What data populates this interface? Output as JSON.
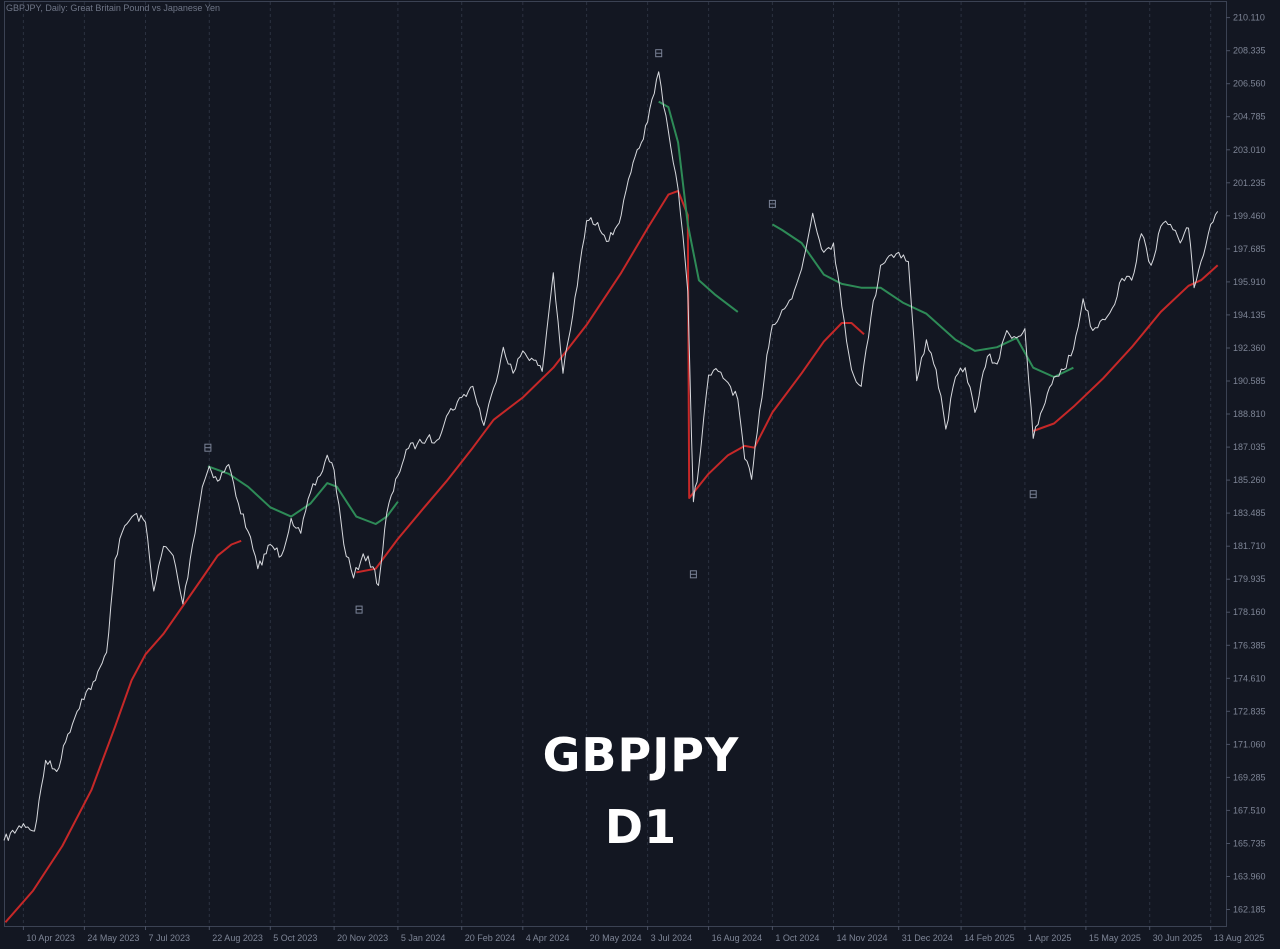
{
  "header": {
    "symbol_line": "GBPJPY, Daily:  Great Britain Pound vs Japanese Yen"
  },
  "overlay": {
    "line1": "GBPJPY",
    "line2": "D1"
  },
  "colors": {
    "background": "#131722",
    "price": "#d7d9de",
    "ma_down": "#c62828",
    "ma_up": "#2e8b57",
    "grid": "#2b3140",
    "axis_text": "#7e8596",
    "marker": "#7a8296"
  },
  "chart_data": {
    "type": "line",
    "title": "GBPJPY, Daily:  Great Britain Pound vs Japanese Yen",
    "xlabel": "",
    "ylabel": "",
    "ylim": [
      161.3,
      210.95
    ],
    "y_ticks": [
      "162.185",
      "163.960",
      "165.735",
      "167.510",
      "169.285",
      "171.060",
      "172.835",
      "174.610",
      "176.385",
      "178.160",
      "179.935",
      "181.710",
      "183.485",
      "185.260",
      "187.035",
      "188.810",
      "190.585",
      "192.360",
      "194.135",
      "195.910",
      "197.685",
      "199.460",
      "201.235",
      "203.010",
      "204.785",
      "206.560",
      "208.335",
      "210.110"
    ],
    "x_ticks": [
      "10 Apr 2023",
      "24 May 2023",
      "7 Jul 2023",
      "22 Aug 2023",
      "5 Oct 2023",
      "20 Nov 2023",
      "5 Jan 2024",
      "20 Feb 2024",
      "4 Apr 2024",
      "20 May 2024",
      "3 Jul 2024",
      "16 Aug 2024",
      "1 Oct 2024",
      "14 Nov 2024",
      "31 Dec 2024",
      "14 Feb 2025",
      "1 Apr 2025",
      "15 May 2025",
      "30 Jun 2025",
      "13 Aug 2025"
    ],
    "x_tick_dates": [
      "2023-04-10",
      "2023-05-24",
      "2023-07-07",
      "2023-08-22",
      "2023-10-05",
      "2023-11-20",
      "2024-01-05",
      "2024-02-20",
      "2024-04-04",
      "2024-05-20",
      "2024-07-03",
      "2024-08-16",
      "2024-10-01",
      "2024-11-14",
      "2024-12-31",
      "2025-02-14",
      "2025-04-01",
      "2025-05-15",
      "2025-06-30",
      "2025-08-13"
    ],
    "series": [
      {
        "role": "price",
        "points": [
          [
            "2023-03-27",
            165.9
          ],
          [
            "2023-04-10",
            166.8
          ],
          [
            "2023-04-18",
            166.4
          ],
          [
            "2023-04-26",
            170.2
          ],
          [
            "2023-05-04",
            169.6
          ],
          [
            "2023-05-12",
            171.6
          ],
          [
            "2023-05-22",
            173.5
          ],
          [
            "2023-06-01",
            174.5
          ],
          [
            "2023-06-09",
            176.0
          ],
          [
            "2023-06-15",
            181.0
          ],
          [
            "2023-06-22",
            182.8
          ],
          [
            "2023-06-29",
            183.4
          ],
          [
            "2023-07-07",
            183.0
          ],
          [
            "2023-07-13",
            179.3
          ],
          [
            "2023-07-20",
            181.7
          ],
          [
            "2023-07-27",
            181.2
          ],
          [
            "2023-08-03",
            178.6
          ],
          [
            "2023-08-10",
            181.8
          ],
          [
            "2023-08-17",
            184.9
          ],
          [
            "2023-08-22",
            186.0
          ],
          [
            "2023-08-28",
            185.2
          ],
          [
            "2023-09-05",
            186.1
          ],
          [
            "2023-09-12",
            184.0
          ],
          [
            "2023-09-19",
            182.5
          ],
          [
            "2023-09-26",
            180.5
          ],
          [
            "2023-10-05",
            181.8
          ],
          [
            "2023-10-13",
            181.2
          ],
          [
            "2023-10-20",
            183.2
          ],
          [
            "2023-10-27",
            182.4
          ],
          [
            "2023-11-03",
            184.6
          ],
          [
            "2023-11-10",
            185.5
          ],
          [
            "2023-11-15",
            186.6
          ],
          [
            "2023-11-20",
            185.8
          ],
          [
            "2023-11-27",
            181.8
          ],
          [
            "2023-12-04",
            180.0
          ],
          [
            "2023-12-11",
            181.3
          ],
          [
            "2023-12-18",
            180.6
          ],
          [
            "2023-12-22",
            179.6
          ],
          [
            "2023-12-28",
            183.5
          ],
          [
            "2024-01-05",
            185.5
          ],
          [
            "2024-01-11",
            186.9
          ],
          [
            "2024-01-19",
            187.2
          ],
          [
            "2024-01-26",
            187.5
          ],
          [
            "2024-02-02",
            187.4
          ],
          [
            "2024-02-09",
            188.7
          ],
          [
            "2024-02-20",
            189.7
          ],
          [
            "2024-02-28",
            190.3
          ],
          [
            "2024-03-07",
            188.2
          ],
          [
            "2024-03-14",
            190.2
          ],
          [
            "2024-03-21",
            192.4
          ],
          [
            "2024-03-28",
            191.0
          ],
          [
            "2024-04-04",
            192.2
          ],
          [
            "2024-04-12",
            191.7
          ],
          [
            "2024-04-18",
            191.1
          ],
          [
            "2024-04-26",
            196.4
          ],
          [
            "2024-05-03",
            191.0
          ],
          [
            "2024-05-10",
            194.1
          ],
          [
            "2024-05-20",
            199.2
          ],
          [
            "2024-05-28",
            199.1
          ],
          [
            "2024-06-05",
            198.1
          ],
          [
            "2024-06-14",
            199.5
          ],
          [
            "2024-06-21",
            201.8
          ],
          [
            "2024-06-27",
            203.1
          ],
          [
            "2024-07-03",
            204.5
          ],
          [
            "2024-07-11",
            207.2
          ],
          [
            "2024-07-18",
            204.0
          ],
          [
            "2024-07-25",
            200.9
          ],
          [
            "2024-08-01",
            195.4
          ],
          [
            "2024-08-05",
            184.1
          ],
          [
            "2024-08-09",
            186.0
          ],
          [
            "2024-08-16",
            190.9
          ],
          [
            "2024-08-23",
            191.1
          ],
          [
            "2024-08-30",
            190.5
          ],
          [
            "2024-09-06",
            189.6
          ],
          [
            "2024-09-11",
            186.4
          ],
          [
            "2024-09-16",
            185.3
          ],
          [
            "2024-09-20",
            187.8
          ],
          [
            "2024-09-27",
            192.0
          ],
          [
            "2024-10-01",
            193.6
          ],
          [
            "2024-10-08",
            194.4
          ],
          [
            "2024-10-15",
            195.0
          ],
          [
            "2024-10-22",
            196.6
          ],
          [
            "2024-10-30",
            199.6
          ],
          [
            "2024-11-07",
            197.5
          ],
          [
            "2024-11-14",
            198.0
          ],
          [
            "2024-11-20",
            194.6
          ],
          [
            "2024-11-27",
            191.2
          ],
          [
            "2024-12-04",
            190.3
          ],
          [
            "2024-12-11",
            194.0
          ],
          [
            "2024-12-18",
            196.8
          ],
          [
            "2024-12-24",
            197.3
          ],
          [
            "2024-12-31",
            197.5
          ],
          [
            "2025-01-07",
            197.0
          ],
          [
            "2025-01-13",
            190.6
          ],
          [
            "2025-01-20",
            192.8
          ],
          [
            "2025-01-27",
            191.2
          ],
          [
            "2025-02-03",
            188.0
          ],
          [
            "2025-02-10",
            190.8
          ],
          [
            "2025-02-17",
            191.3
          ],
          [
            "2025-02-24",
            188.9
          ],
          [
            "2025-03-05",
            191.9
          ],
          [
            "2025-03-12",
            191.5
          ],
          [
            "2025-03-19",
            193.3
          ],
          [
            "2025-03-26",
            192.9
          ],
          [
            "2025-04-01",
            193.4
          ],
          [
            "2025-04-07",
            187.5
          ],
          [
            "2025-04-14",
            189.1
          ],
          [
            "2025-04-22",
            190.8
          ],
          [
            "2025-04-29",
            191.2
          ],
          [
            "2025-05-06",
            192.3
          ],
          [
            "2025-05-13",
            195.0
          ],
          [
            "2025-05-20",
            193.3
          ],
          [
            "2025-05-27",
            193.9
          ],
          [
            "2025-06-03",
            194.5
          ],
          [
            "2025-06-10",
            196.1
          ],
          [
            "2025-06-17",
            196.0
          ],
          [
            "2025-06-24",
            198.5
          ],
          [
            "2025-07-01",
            196.8
          ],
          [
            "2025-07-08",
            198.9
          ],
          [
            "2025-07-15",
            199.0
          ],
          [
            "2025-07-22",
            198.0
          ],
          [
            "2025-07-28",
            198.8
          ],
          [
            "2025-08-01",
            195.6
          ],
          [
            "2025-08-06",
            197.0
          ],
          [
            "2025-08-13",
            199.0
          ],
          [
            "2025-08-18",
            199.7
          ]
        ]
      },
      {
        "role": "trend-down",
        "segments": [
          [
            [
              "2023-03-28",
              161.5
            ],
            [
              "2023-04-17",
              163.2
            ],
            [
              "2023-05-08",
              165.6
            ],
            [
              "2023-05-29",
              168.6
            ],
            [
              "2023-06-15",
              172.0
            ],
            [
              "2023-06-27",
              174.5
            ],
            [
              "2023-07-07",
              175.9
            ],
            [
              "2023-07-20",
              177.0
            ],
            [
              "2023-08-03",
              178.5
            ],
            [
              "2023-08-17",
              180.0
            ],
            [
              "2023-08-28",
              181.2
            ],
            [
              "2023-09-07",
              181.8
            ],
            [
              "2023-09-14",
              182.0
            ]
          ],
          [
            [
              "2023-12-06",
              180.3
            ],
            [
              "2023-12-20",
              180.5
            ],
            [
              "2024-01-05",
              182.1
            ],
            [
              "2024-01-24",
              183.8
            ],
            [
              "2024-02-09",
              185.2
            ],
            [
              "2024-02-28",
              187.0
            ],
            [
              "2024-03-14",
              188.5
            ],
            [
              "2024-04-04",
              189.7
            ],
            [
              "2024-04-26",
              191.3
            ],
            [
              "2024-05-20",
              193.6
            ],
            [
              "2024-06-14",
              196.4
            ],
            [
              "2024-07-03",
              198.8
            ],
            [
              "2024-07-18",
              200.6
            ],
            [
              "2024-07-25",
              200.8
            ],
            [
              "2024-08-01",
              199.5
            ],
            [
              "2024-08-02",
              184.3
            ],
            [
              "2024-08-16",
              185.6
            ],
            [
              "2024-08-30",
              186.6
            ],
            [
              "2024-09-11",
              187.1
            ],
            [
              "2024-09-18",
              187.0
            ],
            [
              "2024-10-01",
              188.9
            ],
            [
              "2024-10-22",
              191.0
            ],
            [
              "2024-11-07",
              192.7
            ],
            [
              "2024-11-20",
              193.7
            ],
            [
              "2024-11-27",
              193.7
            ],
            [
              "2024-12-06",
              193.1
            ]
          ],
          [
            [
              "2025-04-07",
              187.9
            ],
            [
              "2025-04-22",
              188.3
            ],
            [
              "2025-05-06",
              189.2
            ],
            [
              "2025-05-27",
              190.7
            ],
            [
              "2025-06-17",
              192.4
            ],
            [
              "2025-07-08",
              194.3
            ],
            [
              "2025-07-28",
              195.7
            ],
            [
              "2025-08-06",
              196.0
            ],
            [
              "2025-08-18",
              196.8
            ]
          ]
        ]
      },
      {
        "role": "trend-up",
        "segments": [
          [
            [
              "2023-08-21",
              186.0
            ],
            [
              "2023-09-05",
              185.6
            ],
            [
              "2023-09-19",
              184.9
            ],
            [
              "2023-10-05",
              183.8
            ],
            [
              "2023-10-20",
              183.3
            ],
            [
              "2023-11-03",
              184.0
            ],
            [
              "2023-11-15",
              185.1
            ],
            [
              "2023-11-22",
              184.9
            ],
            [
              "2023-12-06",
              183.3
            ],
            [
              "2023-12-20",
              182.9
            ],
            [
              "2023-12-28",
              183.3
            ],
            [
              "2024-01-05",
              184.1
            ]
          ],
          [
            [
              "2024-07-11",
              205.6
            ],
            [
              "2024-07-18",
              205.3
            ],
            [
              "2024-07-25",
              203.4
            ],
            [
              "2024-08-01",
              199.0
            ],
            [
              "2024-08-09",
              196.0
            ],
            [
              "2024-08-21",
              195.2
            ],
            [
              "2024-09-06",
              194.3
            ]
          ],
          [
            [
              "2024-10-01",
              199.0
            ],
            [
              "2024-10-08",
              198.7
            ],
            [
              "2024-10-22",
              198.0
            ],
            [
              "2024-11-07",
              196.3
            ],
            [
              "2024-11-20",
              195.8
            ],
            [
              "2024-12-04",
              195.6
            ],
            [
              "2024-12-18",
              195.6
            ],
            [
              "2025-01-03",
              194.8
            ],
            [
              "2025-01-20",
              194.2
            ],
            [
              "2025-02-10",
              192.8
            ],
            [
              "2025-02-24",
              192.2
            ],
            [
              "2025-03-12",
              192.4
            ],
            [
              "2025-03-26",
              192.9
            ],
            [
              "2025-04-07",
              191.3
            ],
            [
              "2025-04-22",
              190.8
            ],
            [
              "2025-05-06",
              191.3
            ]
          ]
        ]
      },
      {
        "role": "fractal-markers",
        "points": [
          [
            "2023-08-21",
            187.0
          ],
          [
            "2023-12-08",
            178.3
          ],
          [
            "2024-07-11",
            208.2
          ],
          [
            "2024-08-05",
            180.2
          ],
          [
            "2024-10-01",
            200.1
          ],
          [
            "2025-04-07",
            184.5
          ]
        ]
      }
    ]
  }
}
